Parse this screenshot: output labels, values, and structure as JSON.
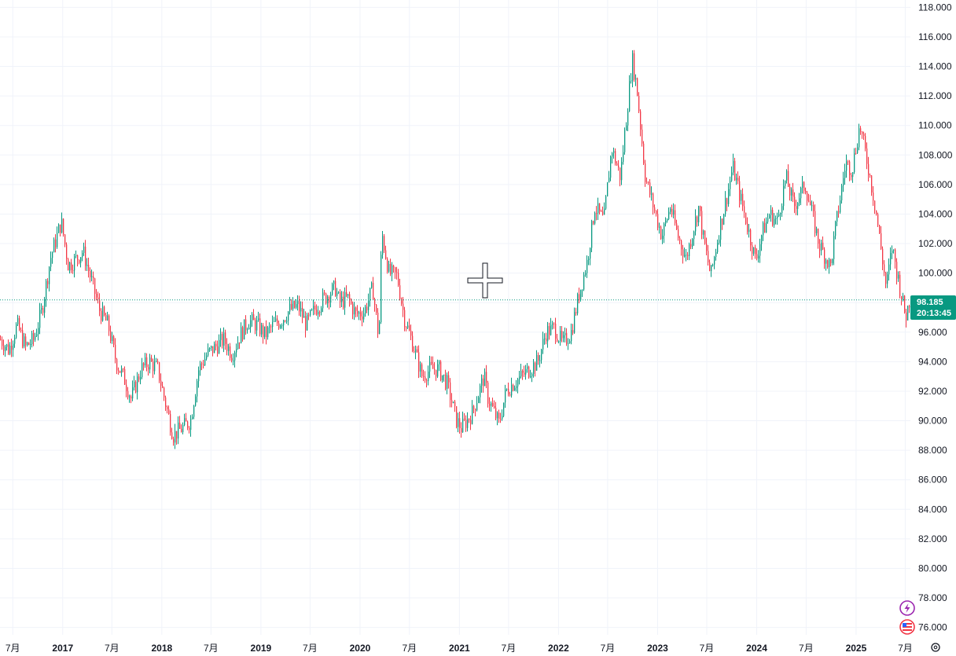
{
  "colors": {
    "up": "#089981",
    "down": "#f23645",
    "grid": "#f0f3fa",
    "text": "#131722",
    "price_line": "#089981",
    "badge": "#089981",
    "crosshair": "#131722",
    "icon_purple": "#9c27b0",
    "icon_red": "#f23645"
  },
  "price_badge": {
    "price": "98.185",
    "countdown": "20:13:45"
  },
  "icons": [
    "lightning-icon",
    "us-flag-icon",
    "settings-icon"
  ],
  "chart_data": {
    "type": "candlestick",
    "title": "",
    "xlabel": "",
    "ylabel": "",
    "ylim": [
      75.5,
      118.5
    ],
    "x_range": [
      "2016-05-15",
      "2025-07-20"
    ],
    "grid": true,
    "last_price": 98.185,
    "y_ticks": [
      "76.000",
      "78.000",
      "80.000",
      "82.000",
      "84.000",
      "86.000",
      "88.000",
      "90.000",
      "92.000",
      "94.000",
      "96.000",
      "98.000",
      "100.000",
      "102.000",
      "104.000",
      "106.000",
      "108.000",
      "110.000",
      "112.000",
      "114.000",
      "116.000",
      "118.000"
    ],
    "x_ticks": [
      {
        "date": "2016-07-01",
        "label": "7月",
        "major": false
      },
      {
        "date": "2017-01-01",
        "label": "2017",
        "major": true
      },
      {
        "date": "2017-07-01",
        "label": "7月",
        "major": false
      },
      {
        "date": "2018-01-01",
        "label": "2018",
        "major": true
      },
      {
        "date": "2018-07-01",
        "label": "7月",
        "major": false
      },
      {
        "date": "2019-01-01",
        "label": "2019",
        "major": true
      },
      {
        "date": "2019-07-01",
        "label": "7月",
        "major": false
      },
      {
        "date": "2020-01-01",
        "label": "2020",
        "major": true
      },
      {
        "date": "2020-07-01",
        "label": "7月",
        "major": false
      },
      {
        "date": "2021-01-01",
        "label": "2021",
        "major": true
      },
      {
        "date": "2021-07-01",
        "label": "7月",
        "major": false
      },
      {
        "date": "2022-01-01",
        "label": "2022",
        "major": true
      },
      {
        "date": "2022-07-01",
        "label": "7月",
        "major": false
      },
      {
        "date": "2023-01-01",
        "label": "2023",
        "major": true
      },
      {
        "date": "2023-07-01",
        "label": "7月",
        "major": false
      },
      {
        "date": "2024-01-01",
        "label": "2024",
        "major": true
      },
      {
        "date": "2024-07-01",
        "label": "7月",
        "major": false
      },
      {
        "date": "2025-01-01",
        "label": "2025",
        "major": true
      },
      {
        "date": "2025-07-01",
        "label": "7月",
        "major": false
      }
    ],
    "price_path": [
      [
        "2016-05-15",
        95.5
      ],
      [
        "2016-06-15",
        94.8
      ],
      [
        "2016-07-15",
        96.5
      ],
      [
        "2016-08-15",
        95.0
      ],
      [
        "2016-09-15",
        95.5
      ],
      [
        "2016-10-15",
        97.5
      ],
      [
        "2016-11-15",
        101.0
      ],
      [
        "2016-12-25",
        103.5
      ],
      [
        "2017-01-20",
        100.5
      ],
      [
        "2017-02-20",
        101.0
      ],
      [
        "2017-03-15",
        101.5
      ],
      [
        "2017-04-15",
        99.5
      ],
      [
        "2017-05-15",
        97.5
      ],
      [
        "2017-06-15",
        96.5
      ],
      [
        "2017-07-15",
        94.0
      ],
      [
        "2017-08-15",
        92.8
      ],
      [
        "2017-09-08",
        91.5
      ],
      [
        "2017-10-15",
        93.5
      ],
      [
        "2017-11-15",
        94.0
      ],
      [
        "2017-12-15",
        93.5
      ],
      [
        "2018-01-15",
        91.0
      ],
      [
        "2018-02-10",
        89.0
      ],
      [
        "2018-03-15",
        89.5
      ],
      [
        "2018-04-15",
        90.0
      ],
      [
        "2018-05-15",
        93.5
      ],
      [
        "2018-06-15",
        94.5
      ],
      [
        "2018-07-15",
        95.0
      ],
      [
        "2018-08-15",
        95.5
      ],
      [
        "2018-09-15",
        94.5
      ],
      [
        "2018-10-15",
        95.8
      ],
      [
        "2018-11-15",
        96.8
      ],
      [
        "2018-12-15",
        96.5
      ],
      [
        "2019-01-15",
        95.8
      ],
      [
        "2019-02-15",
        96.5
      ],
      [
        "2019-03-15",
        96.8
      ],
      [
        "2019-04-15",
        97.5
      ],
      [
        "2019-05-15",
        97.8
      ],
      [
        "2019-06-15",
        96.5
      ],
      [
        "2019-07-15",
        97.5
      ],
      [
        "2019-08-15",
        98.2
      ],
      [
        "2019-09-30",
        99.0
      ],
      [
        "2019-10-15",
        98.0
      ],
      [
        "2019-11-15",
        98.3
      ],
      [
        "2019-12-15",
        97.2
      ],
      [
        "2020-01-15",
        97.4
      ],
      [
        "2020-02-15",
        99.0
      ],
      [
        "2020-03-09",
        95.5
      ],
      [
        "2020-03-19",
        102.8
      ],
      [
        "2020-04-15",
        100.0
      ],
      [
        "2020-05-15",
        99.8
      ],
      [
        "2020-06-10",
        97.0
      ],
      [
        "2020-07-15",
        95.0
      ],
      [
        "2020-08-15",
        93.0
      ],
      [
        "2020-09-15",
        93.5
      ],
      [
        "2020-10-15",
        93.5
      ],
      [
        "2020-11-15",
        92.5
      ],
      [
        "2020-12-20",
        90.0
      ],
      [
        "2021-01-06",
        89.5
      ],
      [
        "2021-02-15",
        90.5
      ],
      [
        "2021-03-31",
        93.0
      ],
      [
        "2021-04-15",
        91.5
      ],
      [
        "2021-05-25",
        89.8
      ],
      [
        "2021-06-20",
        92.0
      ],
      [
        "2021-07-15",
        92.5
      ],
      [
        "2021-08-15",
        93.0
      ],
      [
        "2021-09-15",
        93.5
      ],
      [
        "2021-10-15",
        94.0
      ],
      [
        "2021-11-15",
        96.0
      ],
      [
        "2021-12-15",
        96.3
      ],
      [
        "2022-01-14",
        95.2
      ],
      [
        "2022-02-15",
        96.0
      ],
      [
        "2022-03-15",
        98.5
      ],
      [
        "2022-04-15",
        100.8
      ],
      [
        "2022-05-13",
        104.5
      ],
      [
        "2022-06-15",
        103.5
      ],
      [
        "2022-07-14",
        108.5
      ],
      [
        "2022-08-15",
        106.5
      ],
      [
        "2022-09-28",
        114.5
      ],
      [
        "2022-10-15",
        112.5
      ],
      [
        "2022-11-15",
        106.5
      ],
      [
        "2022-12-15",
        104.5
      ],
      [
        "2023-01-15",
        102.5
      ],
      [
        "2023-02-15",
        104.5
      ],
      [
        "2023-03-15",
        102.5
      ],
      [
        "2023-04-14",
        101.0
      ],
      [
        "2023-05-31",
        104.5
      ],
      [
        "2023-06-15",
        102.5
      ],
      [
        "2023-07-14",
        99.8
      ],
      [
        "2023-08-15",
        103.0
      ],
      [
        "2023-09-15",
        105.5
      ],
      [
        "2023-10-03",
        107.2
      ],
      [
        "2023-11-15",
        104.0
      ],
      [
        "2023-12-27",
        100.8
      ],
      [
        "2024-01-15",
        102.5
      ],
      [
        "2024-02-15",
        104.0
      ],
      [
        "2024-03-15",
        103.5
      ],
      [
        "2024-04-16",
        106.5
      ],
      [
        "2024-05-15",
        104.5
      ],
      [
        "2024-06-25",
        106.0
      ],
      [
        "2024-07-15",
        104.5
      ],
      [
        "2024-08-15",
        102.0
      ],
      [
        "2024-09-27",
        100.4
      ],
      [
        "2024-10-15",
        103.0
      ],
      [
        "2024-11-22",
        107.5
      ],
      [
        "2024-12-15",
        107.0
      ],
      [
        "2025-01-13",
        110.0
      ],
      [
        "2025-02-15",
        107.0
      ],
      [
        "2025-03-15",
        104.0
      ],
      [
        "2025-04-20",
        99.0
      ],
      [
        "2025-05-12",
        101.8
      ],
      [
        "2025-06-15",
        98.5
      ],
      [
        "2025-07-01",
        97.0
      ],
      [
        "2025-07-15",
        98.185
      ]
    ]
  }
}
